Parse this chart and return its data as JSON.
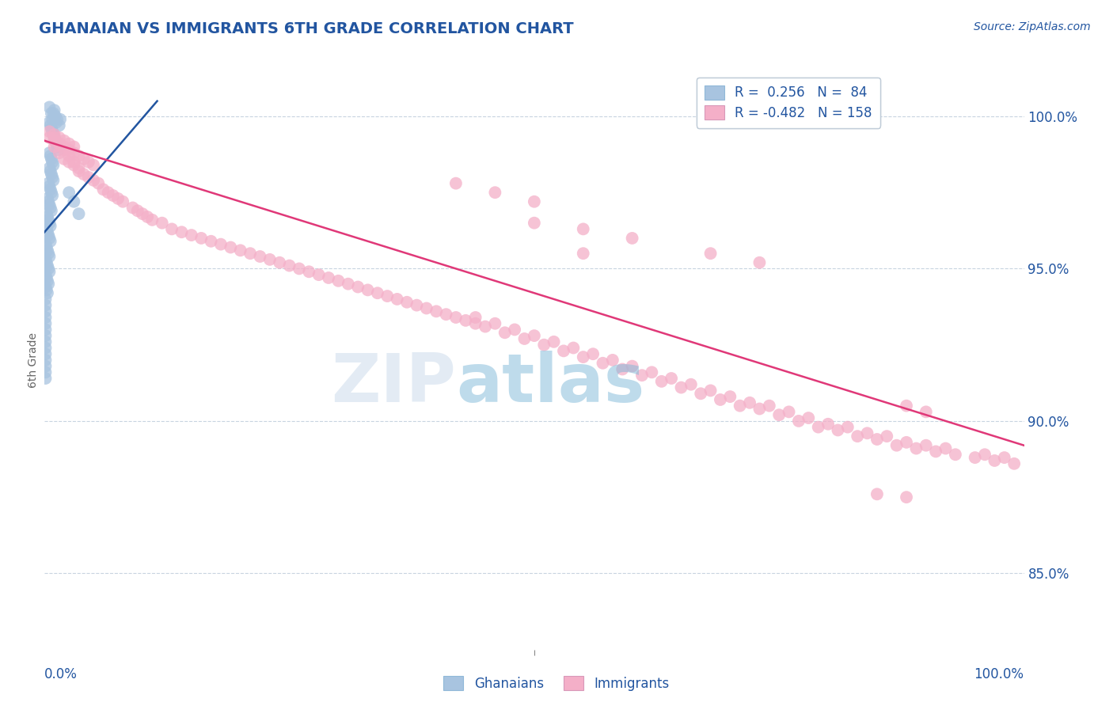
{
  "title": "GHANAIAN VS IMMIGRANTS 6TH GRADE CORRELATION CHART",
  "source": "Source: ZipAtlas.com",
  "ylabel": "6th Grade",
  "ytick_labels": [
    "100.0%",
    "95.0%",
    "90.0%",
    "85.0%"
  ],
  "ytick_values": [
    1.0,
    0.95,
    0.9,
    0.85
  ],
  "xlim": [
    0.0,
    1.0
  ],
  "ylim": [
    0.825,
    1.015
  ],
  "color_blue": "#a8c4e0",
  "color_pink": "#f4afc8",
  "line_blue": "#2255a0",
  "line_pink": "#e03878",
  "title_color": "#2255a0",
  "tick_color": "#2255a0",
  "grid_color": "#c8d4e0",
  "blue_line_x": [
    0.0,
    0.115
  ],
  "blue_line_y": [
    0.962,
    1.005
  ],
  "pink_line_x": [
    0.0,
    1.0
  ],
  "pink_line_y": [
    0.992,
    0.892
  ],
  "blue_scatter_x": [
    0.005,
    0.007,
    0.008,
    0.009,
    0.01,
    0.011,
    0.012,
    0.013,
    0.015,
    0.016,
    0.005,
    0.006,
    0.007,
    0.008,
    0.009,
    0.01,
    0.011,
    0.012,
    0.013,
    0.014,
    0.005,
    0.006,
    0.007,
    0.008,
    0.009,
    0.005,
    0.006,
    0.007,
    0.008,
    0.009,
    0.004,
    0.005,
    0.006,
    0.007,
    0.008,
    0.003,
    0.004,
    0.005,
    0.006,
    0.007,
    0.002,
    0.003,
    0.004,
    0.005,
    0.006,
    0.002,
    0.003,
    0.004,
    0.005,
    0.006,
    0.001,
    0.002,
    0.003,
    0.004,
    0.005,
    0.001,
    0.002,
    0.003,
    0.004,
    0.005,
    0.001,
    0.002,
    0.003,
    0.004,
    0.001,
    0.002,
    0.003,
    0.025,
    0.03,
    0.035,
    0.001,
    0.001,
    0.001,
    0.001,
    0.001,
    0.001,
    0.001,
    0.001,
    0.001,
    0.001,
    0.001,
    0.001,
    0.001,
    0.001
  ],
  "blue_scatter_y": [
    1.003,
    1.001,
    0.999,
    1.001,
    1.002,
    1.0,
    0.998,
    0.999,
    0.997,
    0.999,
    0.998,
    0.997,
    0.996,
    0.995,
    0.994,
    0.993,
    0.992,
    0.991,
    0.99,
    0.989,
    0.988,
    0.987,
    0.986,
    0.985,
    0.984,
    0.983,
    0.982,
    0.981,
    0.98,
    0.979,
    0.978,
    0.977,
    0.976,
    0.975,
    0.974,
    0.973,
    0.972,
    0.971,
    0.97,
    0.969,
    0.968,
    0.967,
    0.966,
    0.965,
    0.964,
    0.963,
    0.962,
    0.961,
    0.96,
    0.959,
    0.958,
    0.957,
    0.956,
    0.955,
    0.954,
    0.953,
    0.952,
    0.951,
    0.95,
    0.949,
    0.948,
    0.947,
    0.946,
    0.945,
    0.944,
    0.943,
    0.942,
    0.975,
    0.972,
    0.968,
    0.94,
    0.938,
    0.936,
    0.934,
    0.932,
    0.93,
    0.928,
    0.926,
    0.924,
    0.922,
    0.92,
    0.918,
    0.916,
    0.914
  ],
  "pink_scatter_x": [
    0.005,
    0.01,
    0.015,
    0.02,
    0.025,
    0.03,
    0.035,
    0.04,
    0.045,
    0.05,
    0.055,
    0.06,
    0.065,
    0.07,
    0.075,
    0.08,
    0.09,
    0.095,
    0.1,
    0.105,
    0.01,
    0.015,
    0.02,
    0.025,
    0.03,
    0.035,
    0.04,
    0.045,
    0.05,
    0.01,
    0.015,
    0.02,
    0.025,
    0.03,
    0.11,
    0.13,
    0.15,
    0.17,
    0.19,
    0.21,
    0.23,
    0.25,
    0.27,
    0.29,
    0.31,
    0.33,
    0.35,
    0.37,
    0.39,
    0.41,
    0.12,
    0.14,
    0.16,
    0.18,
    0.2,
    0.22,
    0.24,
    0.26,
    0.28,
    0.3,
    0.32,
    0.34,
    0.36,
    0.38,
    0.4,
    0.42,
    0.44,
    0.43,
    0.45,
    0.47,
    0.49,
    0.51,
    0.53,
    0.55,
    0.57,
    0.59,
    0.61,
    0.63,
    0.65,
    0.67,
    0.69,
    0.71,
    0.44,
    0.46,
    0.48,
    0.5,
    0.52,
    0.54,
    0.56,
    0.58,
    0.6,
    0.62,
    0.64,
    0.66,
    0.68,
    0.7,
    0.72,
    0.73,
    0.75,
    0.77,
    0.79,
    0.81,
    0.83,
    0.85,
    0.87,
    0.89,
    0.91,
    0.93,
    0.95,
    0.97,
    0.99,
    0.74,
    0.76,
    0.78,
    0.8,
    0.82,
    0.84,
    0.86,
    0.88,
    0.9,
    0.92,
    0.96,
    0.98,
    0.5,
    0.55,
    0.6,
    0.68,
    0.73,
    0.88,
    0.9,
    0.005,
    0.01,
    0.015,
    0.02,
    0.025,
    0.03,
    0.035,
    0.42,
    0.46,
    0.5,
    0.55,
    0.85,
    0.88
  ],
  "pink_scatter_y": [
    0.993,
    0.99,
    0.988,
    0.986,
    0.985,
    0.984,
    0.982,
    0.981,
    0.98,
    0.979,
    0.978,
    0.976,
    0.975,
    0.974,
    0.973,
    0.972,
    0.97,
    0.969,
    0.968,
    0.967,
    0.992,
    0.991,
    0.99,
    0.989,
    0.988,
    0.987,
    0.986,
    0.985,
    0.984,
    0.994,
    0.993,
    0.992,
    0.991,
    0.99,
    0.966,
    0.963,
    0.961,
    0.959,
    0.957,
    0.955,
    0.953,
    0.951,
    0.949,
    0.947,
    0.945,
    0.943,
    0.941,
    0.939,
    0.937,
    0.935,
    0.965,
    0.962,
    0.96,
    0.958,
    0.956,
    0.954,
    0.952,
    0.95,
    0.948,
    0.946,
    0.944,
    0.942,
    0.94,
    0.938,
    0.936,
    0.934,
    0.932,
    0.933,
    0.931,
    0.929,
    0.927,
    0.925,
    0.923,
    0.921,
    0.919,
    0.917,
    0.915,
    0.913,
    0.911,
    0.909,
    0.907,
    0.905,
    0.934,
    0.932,
    0.93,
    0.928,
    0.926,
    0.924,
    0.922,
    0.92,
    0.918,
    0.916,
    0.914,
    0.912,
    0.91,
    0.908,
    0.906,
    0.904,
    0.902,
    0.9,
    0.898,
    0.897,
    0.895,
    0.894,
    0.892,
    0.891,
    0.89,
    0.889,
    0.888,
    0.887,
    0.886,
    0.905,
    0.903,
    0.901,
    0.899,
    0.898,
    0.896,
    0.895,
    0.893,
    0.892,
    0.891,
    0.889,
    0.888,
    0.972,
    0.963,
    0.96,
    0.955,
    0.952,
    0.905,
    0.903,
    0.995,
    0.993,
    0.991,
    0.989,
    0.987,
    0.985,
    0.983,
    0.978,
    0.975,
    0.965,
    0.955,
    0.876,
    0.875
  ]
}
